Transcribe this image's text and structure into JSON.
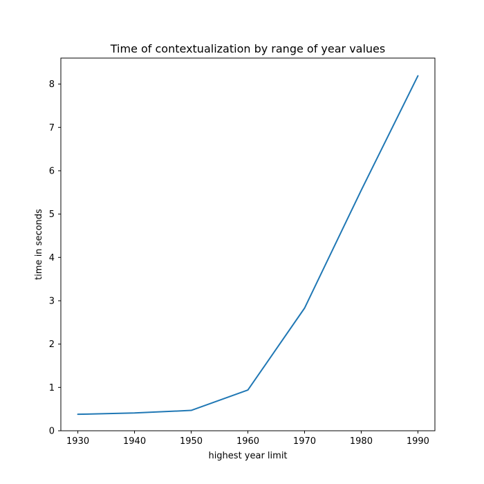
{
  "chart_data": {
    "type": "line",
    "title": "Time of contextualization by range of year values",
    "xlabel": "highest year limit",
    "ylabel": "time in seconds",
    "x": [
      1930,
      1940,
      1950,
      1960,
      1970,
      1980,
      1990
    ],
    "series": [
      {
        "values": [
          0.38,
          0.41,
          0.47,
          0.94,
          2.83,
          5.55,
          8.19
        ]
      }
    ],
    "xlim": [
      1927,
      1993
    ],
    "ylim": [
      0,
      8.6
    ],
    "xticks": [
      "1930",
      "1940",
      "1950",
      "1960",
      "1970",
      "1980",
      "1990"
    ],
    "yticks": [
      "0",
      "1",
      "2",
      "3",
      "4",
      "5",
      "6",
      "7",
      "8"
    ],
    "grid": false,
    "line_color": "#1f77b4"
  }
}
